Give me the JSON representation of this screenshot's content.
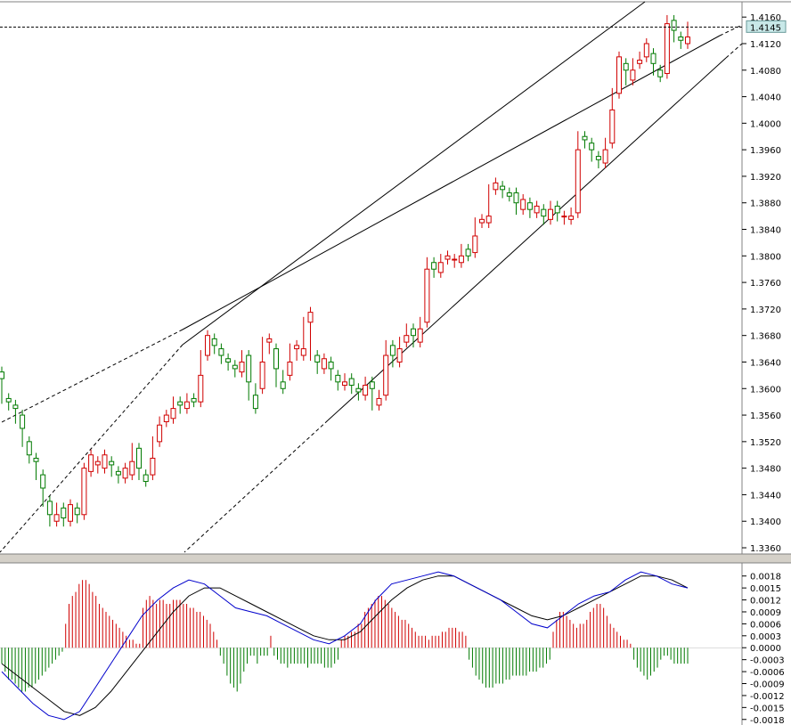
{
  "chart_data": [
    {
      "type": "candlestick",
      "panel": "price",
      "y_ticks": [
        "1.4160",
        "1.4120",
        "1.4080",
        "1.4040",
        "1.4000",
        "1.3960",
        "1.3920",
        "1.3880",
        "1.3840",
        "1.3800",
        "1.3760",
        "1.3720",
        "1.3680",
        "1.3640",
        "1.3600",
        "1.3560",
        "1.3520",
        "1.3480",
        "1.3440",
        "1.3400",
        "1.3360"
      ],
      "ylim": [
        1.3356,
        1.4175
      ],
      "current_price": 1.4145,
      "current_price_label": "1.4145",
      "up_color": "#d00000",
      "down_color": "#007a00",
      "candles": [
        [
          1.3625,
          1.3615,
          1.3585
        ],
        [
          1.3585,
          1.358,
          1.3575
        ],
        [
          1.3575,
          1.357,
          1.3555
        ],
        [
          1.356,
          1.354,
          1.352
        ],
        [
          1.352,
          1.35,
          1.3495
        ],
        [
          1.3495,
          1.349,
          1.347
        ],
        [
          1.347,
          1.345,
          1.343
        ],
        [
          1.343,
          1.341,
          1.34
        ],
        [
          1.34,
          1.341,
          1.342
        ],
        [
          1.342,
          1.3405,
          1.34
        ],
        [
          1.34,
          1.3425,
          1.342
        ],
        [
          1.342,
          1.341,
          1.3405
        ],
        [
          1.341,
          1.348,
          1.3475
        ],
        [
          1.3475,
          1.35,
          1.3485
        ],
        [
          1.3485,
          1.349,
          1.348
        ],
        [
          1.348,
          1.35,
          1.349
        ],
        [
          1.349,
          1.3485,
          1.3475
        ],
        [
          1.3475,
          1.347,
          1.3465
        ],
        [
          1.3465,
          1.348,
          1.347
        ],
        [
          1.347,
          1.349,
          1.351
        ],
        [
          1.351,
          1.348,
          1.347
        ],
        [
          1.347,
          1.346,
          1.347
        ],
        [
          1.347,
          1.3495,
          1.352
        ],
        [
          1.352,
          1.3545,
          1.355
        ],
        [
          1.355,
          1.356,
          1.3555
        ],
        [
          1.3555,
          1.357,
          1.358
        ],
        [
          1.358,
          1.3575,
          1.357
        ],
        [
          1.357,
          1.358,
          1.3585
        ],
        [
          1.3585,
          1.358,
          1.358
        ],
        [
          1.358,
          1.362,
          1.365
        ],
        [
          1.365,
          1.368,
          1.3675
        ],
        [
          1.3675,
          1.3665,
          1.366
        ],
        [
          1.366,
          1.365,
          1.3645
        ],
        [
          1.3645,
          1.364,
          1.3635
        ],
        [
          1.3635,
          1.363,
          1.3625
        ],
        [
          1.3625,
          1.364,
          1.365
        ],
        [
          1.365,
          1.361,
          1.359
        ],
        [
          1.359,
          1.357,
          1.36
        ],
        [
          1.36,
          1.364,
          1.367
        ],
        [
          1.367,
          1.3675,
          1.366
        ],
        [
          1.366,
          1.363,
          1.361
        ],
        [
          1.361,
          1.36,
          1.362
        ],
        [
          1.362,
          1.364,
          1.366
        ],
        [
          1.366,
          1.3665,
          1.365
        ],
        [
          1.365,
          1.366,
          1.37
        ],
        [
          1.37,
          1.3715,
          1.365
        ],
        [
          1.365,
          1.364,
          1.363
        ],
        [
          1.363,
          1.3645,
          1.364
        ],
        [
          1.364,
          1.363,
          1.362
        ],
        [
          1.362,
          1.361,
          1.3605
        ],
        [
          1.3605,
          1.361,
          1.3615
        ],
        [
          1.3615,
          1.3605,
          1.36
        ],
        [
          1.36,
          1.3595,
          1.359
        ],
        [
          1.359,
          1.3605,
          1.361
        ],
        [
          1.361,
          1.36,
          1.3575
        ],
        [
          1.3575,
          1.3585,
          1.359
        ],
        [
          1.359,
          1.365,
          1.3665
        ],
        [
          1.3665,
          1.365,
          1.364
        ],
        [
          1.364,
          1.366,
          1.367
        ],
        [
          1.367,
          1.368,
          1.369
        ],
        [
          1.369,
          1.368,
          1.367
        ],
        [
          1.367,
          1.369,
          1.37
        ],
        [
          1.37,
          1.378,
          1.379
        ],
        [
          1.379,
          1.378,
          1.3775
        ],
        [
          1.3775,
          1.379,
          1.3795
        ],
        [
          1.3795,
          1.38,
          1.3795
        ],
        [
          1.3795,
          1.3795,
          1.379
        ],
        [
          1.379,
          1.38,
          1.381
        ],
        [
          1.381,
          1.38,
          1.3805
        ],
        [
          1.3805,
          1.383,
          1.385
        ],
        [
          1.385,
          1.3855,
          1.385
        ],
        [
          1.385,
          1.386,
          1.39
        ],
        [
          1.39,
          1.391,
          1.3905
        ],
        [
          1.3905,
          1.39,
          1.3895
        ],
        [
          1.3895,
          1.389,
          1.3895
        ],
        [
          1.3895,
          1.388,
          1.387
        ],
        [
          1.387,
          1.3885,
          1.388
        ],
        [
          1.388,
          1.387,
          1.3865
        ],
        [
          1.3865,
          1.3875,
          1.387
        ],
        [
          1.387,
          1.386,
          1.3855
        ],
        [
          1.3855,
          1.387,
          1.3875
        ],
        [
          1.3875,
          1.3865,
          1.386
        ],
        [
          1.386,
          1.386,
          1.3855
        ],
        [
          1.3855,
          1.386,
          1.3865
        ],
        [
          1.3865,
          1.396,
          1.398
        ],
        [
          1.398,
          1.3975,
          1.397
        ],
        [
          1.397,
          1.396,
          1.395
        ],
        [
          1.395,
          1.3945,
          1.394
        ],
        [
          1.394,
          1.396,
          1.397
        ],
        [
          1.397,
          1.402,
          1.4045
        ],
        [
          1.4045,
          1.41,
          1.409
        ],
        [
          1.409,
          1.408,
          1.4065
        ],
        [
          1.4065,
          1.408,
          1.409
        ],
        [
          1.409,
          1.4095,
          1.41
        ],
        [
          1.41,
          1.412,
          1.4105
        ],
        [
          1.4105,
          1.409,
          1.408
        ],
        [
          1.408,
          1.407,
          1.4075
        ],
        [
          1.4075,
          1.415,
          1.4155
        ],
        [
          1.4155,
          1.414,
          1.413
        ],
        [
          1.413,
          1.4125,
          1.412
        ],
        [
          1.412,
          1.413,
          1.4145
        ]
      ]
    },
    {
      "type": "macd",
      "panel": "oscillator",
      "y_ticks": [
        "0.0018",
        "0.0015",
        "0.0012",
        "0.0009",
        "0.0006",
        "0.0003",
        "0.0000",
        "-0.0003",
        "-0.0006",
        "-0.0009",
        "-0.0012",
        "-0.0015",
        "-0.0018"
      ],
      "ylim": [
        -0.00185,
        0.00195
      ],
      "histogram_up_color": "#d00000",
      "histogram_down_color": "#007a00",
      "line1_color": "#0000cc",
      "line2_color": "#000000",
      "histogram": [
        -0.0004,
        -0.0006,
        -0.0008,
        -0.0008,
        -0.0009,
        -0.001,
        -0.0011,
        -0.0011,
        -0.001,
        -0.001,
        -0.0009,
        -0.0008,
        -0.0007,
        -0.0006,
        -0.0005,
        -0.0004,
        -0.0003,
        -0.0002,
        -0.0001,
        0.0006,
        0.0011,
        0.0013,
        0.0014,
        0.0016,
        0.0017,
        0.0017,
        0.0016,
        0.0014,
        0.0013,
        0.0011,
        0.001,
        0.0009,
        0.0008,
        0.0007,
        0.0006,
        0.0005,
        0.0004,
        0.0003,
        0.0002,
        0.0002,
        0.0001,
        0.0001,
        0.001,
        0.0012,
        0.0013,
        0.0012,
        0.0011,
        0.0012,
        0.0012,
        0.0011,
        0.0011,
        0.0012,
        0.0012,
        0.0012,
        0.0011,
        0.0011,
        0.001,
        0.001,
        0.0009,
        0.0009,
        0.0008,
        0.0007,
        0.0006,
        0.0004,
        0.0002,
        -0.0002,
        -0.0004,
        -0.0007,
        -0.0009,
        -0.001,
        -0.0011,
        -0.0009,
        -0.0006,
        -0.0004,
        -0.0002,
        -0.0002,
        -0.0004,
        -0.0002,
        -0.0002,
        -0.0002,
        0.0003,
        -0.0002,
        -0.0003,
        -0.0004,
        -0.0004,
        -0.0005,
        -0.0004,
        -0.0004,
        -0.0004,
        -0.0004,
        -0.0004,
        -0.0005,
        -0.0004,
        -0.0004,
        -0.0004,
        -0.0004,
        -0.0005,
        -0.0005,
        -0.0005,
        -0.0004,
        -0.0003,
        0.0002,
        0.0003,
        0.0003,
        0.0004,
        0.0004,
        0.0006,
        0.0006,
        0.0009,
        0.001,
        0.0011,
        0.0012,
        0.0013,
        0.0013,
        0.0012,
        0.0011,
        0.001,
        0.0009,
        0.0008,
        0.0007,
        0.0007,
        0.0006,
        0.0005,
        0.0004,
        0.0003,
        0.0003,
        0.0003,
        0.0002,
        0.0003,
        0.0003,
        0.0003,
        0.0004,
        0.0004,
        0.0005,
        0.0005,
        0.0005,
        0.0004,
        0.0004,
        0.0003,
        -0.0003,
        -0.0005,
        -0.0007,
        -0.0008,
        -0.0009,
        -0.001,
        -0.001,
        -0.001,
        -0.0009,
        -0.0009,
        -0.0009,
        -0.0008,
        -0.0008,
        -0.0007,
        -0.0007,
        -0.0007,
        -0.0007,
        -0.0007,
        -0.0006,
        -0.0006,
        -0.0006,
        -0.0005,
        -0.0005,
        -0.0004,
        -0.0003,
        0.0004,
        0.0007,
        0.0009,
        0.0009,
        0.0008,
        0.0007,
        0.0006,
        0.0005,
        0.0006,
        0.0006,
        0.0007,
        0.0009,
        0.001,
        0.0011,
        0.0011,
        0.001,
        0.0008,
        0.0006,
        0.0005,
        0.0004,
        0.0003,
        0.0002,
        0.0002,
        0.0001,
        -0.0003,
        -0.0005,
        -0.0006,
        -0.0007,
        -0.0008,
        -0.0007,
        -0.0006,
        -0.0005,
        -0.0003,
        -0.0002,
        -0.0002,
        -0.0003,
        -0.0004,
        -0.0004,
        -0.0004,
        -0.0004,
        -0.0004
      ],
      "line1": [
        -0.0006,
        -0.001,
        -0.0014,
        -0.0017,
        -0.0018,
        -0.0016,
        -0.001,
        -0.0004,
        0.0002,
        0.0008,
        0.0012,
        0.0015,
        0.0017,
        0.0016,
        0.0013,
        0.001,
        0.0009,
        0.0008,
        0.0006,
        0.0004,
        0.0002,
        0.0001,
        0.0003,
        0.0006,
        0.0012,
        0.0016,
        0.0017,
        0.0018,
        0.0019,
        0.0018,
        0.0016,
        0.0014,
        0.0012,
        0.0009,
        0.0006,
        0.0005,
        0.0008,
        0.0011,
        0.0013,
        0.0014,
        0.0017,
        0.0019,
        0.0018,
        0.0016,
        0.0015
      ],
      "line2": [
        -0.0004,
        -0.0007,
        -0.001,
        -0.0013,
        -0.0016,
        -0.0017,
        -0.0015,
        -0.0011,
        -0.0006,
        -0.0001,
        0.0004,
        0.0009,
        0.0013,
        0.0015,
        0.0015,
        0.0013,
        0.0011,
        0.0009,
        0.0007,
        0.0005,
        0.0003,
        0.0002,
        0.0002,
        0.0004,
        0.0008,
        0.0012,
        0.0015,
        0.0017,
        0.0018,
        0.0018,
        0.0016,
        0.0014,
        0.0012,
        0.001,
        0.0008,
        0.0007,
        0.0008,
        0.001,
        0.0012,
        0.0014,
        0.0016,
        0.0018,
        0.0018,
        0.0017,
        0.0015
      ]
    }
  ]
}
